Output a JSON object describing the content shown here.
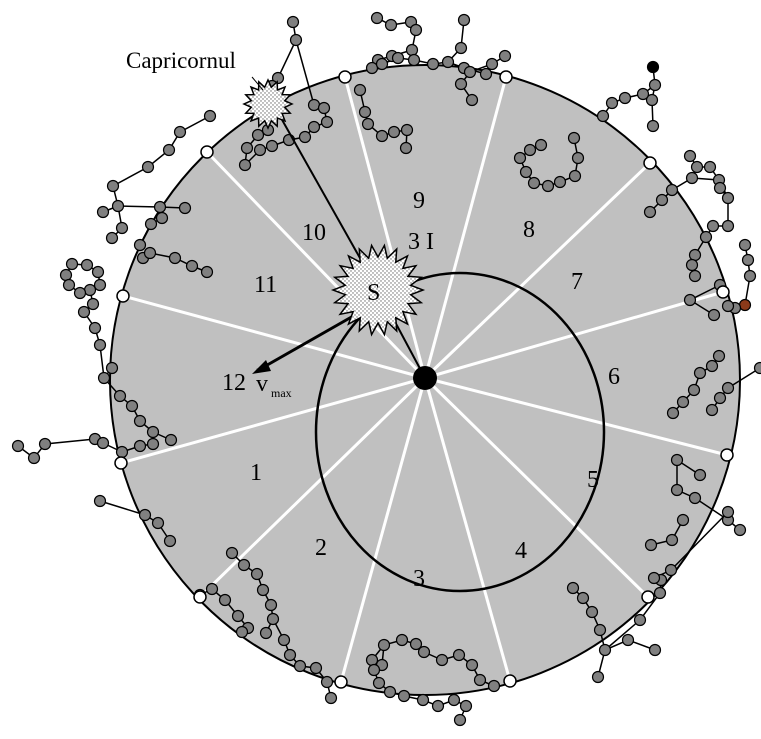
{
  "diagram": {
    "constellation_label": "Capricornul",
    "sun_label": "S",
    "velocity_label": "v",
    "velocity_subscript": "max",
    "velocity_prefix": "12",
    "sector_labels": [
      "1",
      "2",
      "3",
      "4",
      "5",
      "6",
      "7",
      "8",
      "9",
      "10",
      "11"
    ],
    "orbit_label": "3 I"
  },
  "colors": {
    "disk_fill": "#c0c0c0",
    "star_fill": "#808080",
    "highlight_star": "#8b3a1a",
    "divider": "#ffffff",
    "ink": "#000000"
  }
}
